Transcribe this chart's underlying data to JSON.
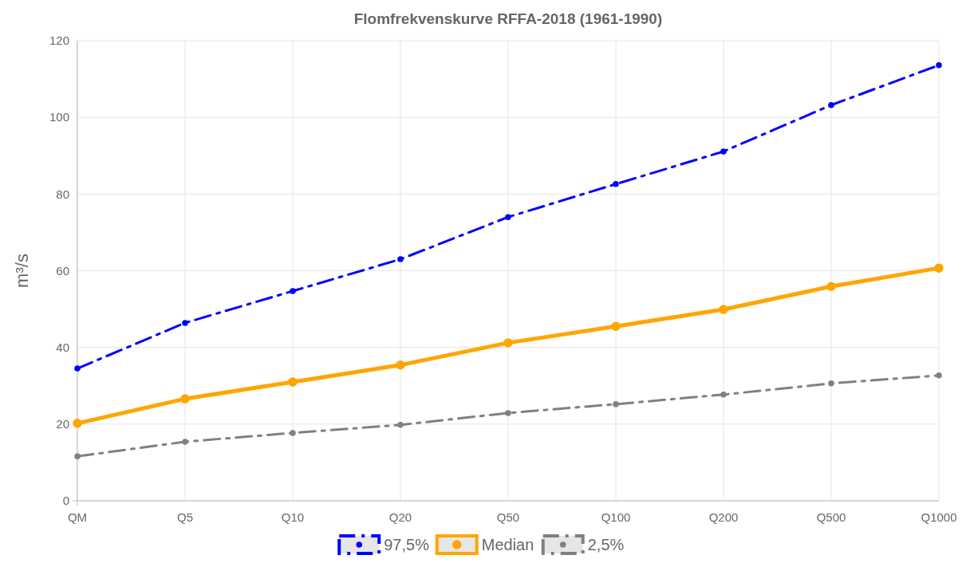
{
  "chart_data": {
    "type": "line",
    "title": "Flomfrekvenskurve RFFA-2018 (1961-1990)",
    "ylabel": "m³/s",
    "categories": [
      "QM",
      "Q5",
      "Q10",
      "Q20",
      "Q50",
      "Q100",
      "Q200",
      "Q500",
      "Q1000"
    ],
    "series": [
      {
        "name": "97,5%",
        "color": "#0000ff",
        "line_style": "dashed",
        "values": [
          34.5,
          46.4,
          54.7,
          63.0,
          74.0,
          82.6,
          91.1,
          103.2,
          113.6
        ]
      },
      {
        "name": "Median",
        "color": "#ffa500",
        "line_style": "solid",
        "values": [
          20.2,
          26.6,
          31.0,
          35.4,
          41.2,
          45.5,
          49.9,
          55.9,
          60.7
        ]
      },
      {
        "name": "2,5%",
        "color": "#808080",
        "line_style": "dashed",
        "values": [
          11.6,
          15.4,
          17.7,
          19.8,
          22.9,
          25.2,
          27.7,
          30.6,
          32.7
        ]
      }
    ],
    "ylim": [
      0,
      120
    ],
    "yticks": [
      0,
      20,
      40,
      60,
      80,
      100,
      120
    ],
    "grid": true,
    "legend": "bottom",
    "marker": "circle"
  }
}
